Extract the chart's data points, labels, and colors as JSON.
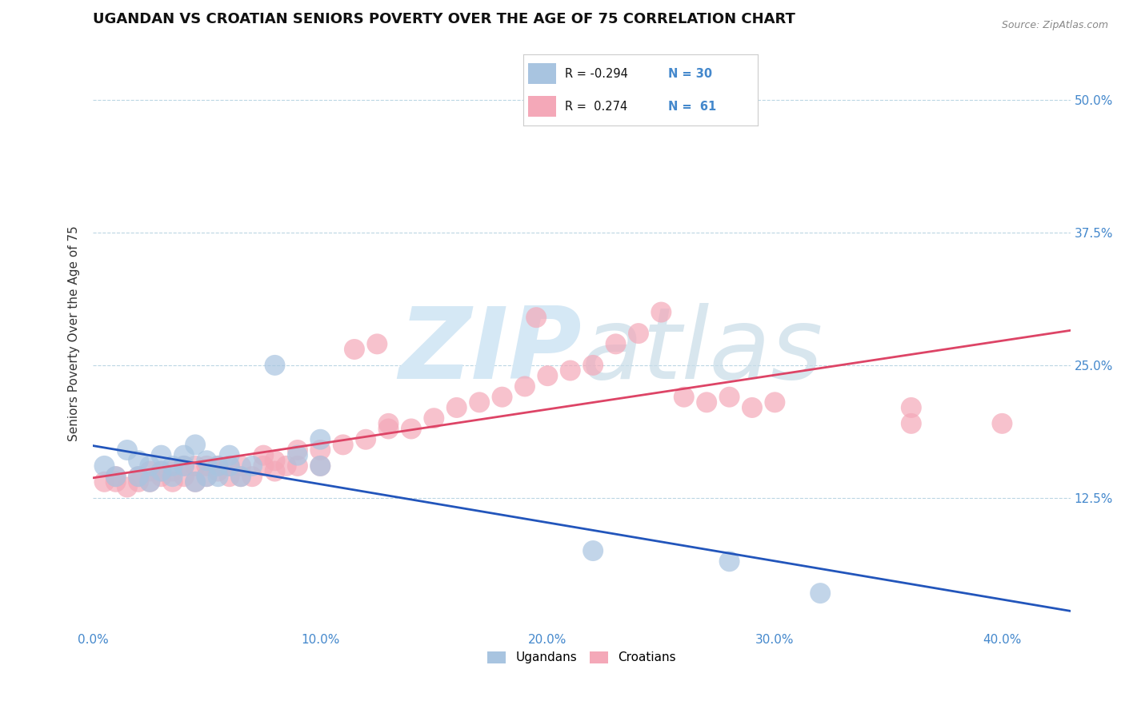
{
  "title": "UGANDAN VS CROATIAN SENIORS POVERTY OVER THE AGE OF 75 CORRELATION CHART",
  "source_text": "Source: ZipAtlas.com",
  "ylabel": "Seniors Poverty Over the Age of 75",
  "x_tick_labels": [
    "0.0%",
    "10.0%",
    "20.0%",
    "30.0%",
    "40.0%"
  ],
  "x_tick_vals": [
    0.0,
    0.1,
    0.2,
    0.3,
    0.4
  ],
  "y_tick_labels": [
    "12.5%",
    "25.0%",
    "37.5%",
    "50.0%"
  ],
  "y_tick_vals": [
    0.125,
    0.25,
    0.375,
    0.5
  ],
  "xlim": [
    0.0,
    0.43
  ],
  "ylim": [
    0.0,
    0.56
  ],
  "legend_R": [
    "-0.294",
    "0.274"
  ],
  "legend_N": [
    "30",
    "61"
  ],
  "ugandan_color": "#a8c4e0",
  "croatian_color": "#f4a8b8",
  "ugandan_line_color": "#2255bb",
  "croatian_line_color": "#dd4466",
  "watermark_color": "#d5e8f5",
  "background_color": "#ffffff",
  "ugandan_x": [
    0.005,
    0.01,
    0.015,
    0.02,
    0.02,
    0.025,
    0.025,
    0.03,
    0.03,
    0.035,
    0.035,
    0.04,
    0.04,
    0.045,
    0.045,
    0.05,
    0.05,
    0.055,
    0.055,
    0.06,
    0.06,
    0.065,
    0.07,
    0.08,
    0.09,
    0.1,
    0.1,
    0.22,
    0.28,
    0.32
  ],
  "ugandan_y": [
    0.155,
    0.145,
    0.17,
    0.16,
    0.145,
    0.155,
    0.14,
    0.165,
    0.15,
    0.155,
    0.145,
    0.165,
    0.155,
    0.175,
    0.14,
    0.16,
    0.145,
    0.155,
    0.145,
    0.165,
    0.155,
    0.145,
    0.155,
    0.25,
    0.165,
    0.18,
    0.155,
    0.075,
    0.065,
    0.035
  ],
  "croatian_x": [
    0.005,
    0.01,
    0.01,
    0.015,
    0.02,
    0.02,
    0.025,
    0.025,
    0.03,
    0.03,
    0.035,
    0.035,
    0.04,
    0.04,
    0.045,
    0.045,
    0.05,
    0.05,
    0.055,
    0.055,
    0.06,
    0.06,
    0.065,
    0.065,
    0.07,
    0.075,
    0.075,
    0.08,
    0.08,
    0.085,
    0.09,
    0.09,
    0.1,
    0.1,
    0.11,
    0.12,
    0.13,
    0.14,
    0.15,
    0.16,
    0.17,
    0.18,
    0.19,
    0.2,
    0.21,
    0.22,
    0.23,
    0.24,
    0.25,
    0.26,
    0.27,
    0.28,
    0.29,
    0.3,
    0.36,
    0.36,
    0.4,
    0.195,
    0.125,
    0.115,
    0.13
  ],
  "croatian_y": [
    0.14,
    0.145,
    0.14,
    0.135,
    0.145,
    0.14,
    0.15,
    0.14,
    0.15,
    0.145,
    0.14,
    0.15,
    0.145,
    0.155,
    0.14,
    0.155,
    0.145,
    0.155,
    0.15,
    0.155,
    0.145,
    0.155,
    0.145,
    0.155,
    0.145,
    0.155,
    0.165,
    0.15,
    0.16,
    0.155,
    0.17,
    0.155,
    0.17,
    0.155,
    0.175,
    0.18,
    0.195,
    0.19,
    0.2,
    0.21,
    0.215,
    0.22,
    0.23,
    0.24,
    0.245,
    0.25,
    0.27,
    0.28,
    0.3,
    0.22,
    0.215,
    0.22,
    0.21,
    0.215,
    0.21,
    0.195,
    0.195,
    0.295,
    0.27,
    0.265,
    0.19
  ],
  "title_fontsize": 13,
  "axis_fontsize": 11,
  "tick_fontsize": 11
}
